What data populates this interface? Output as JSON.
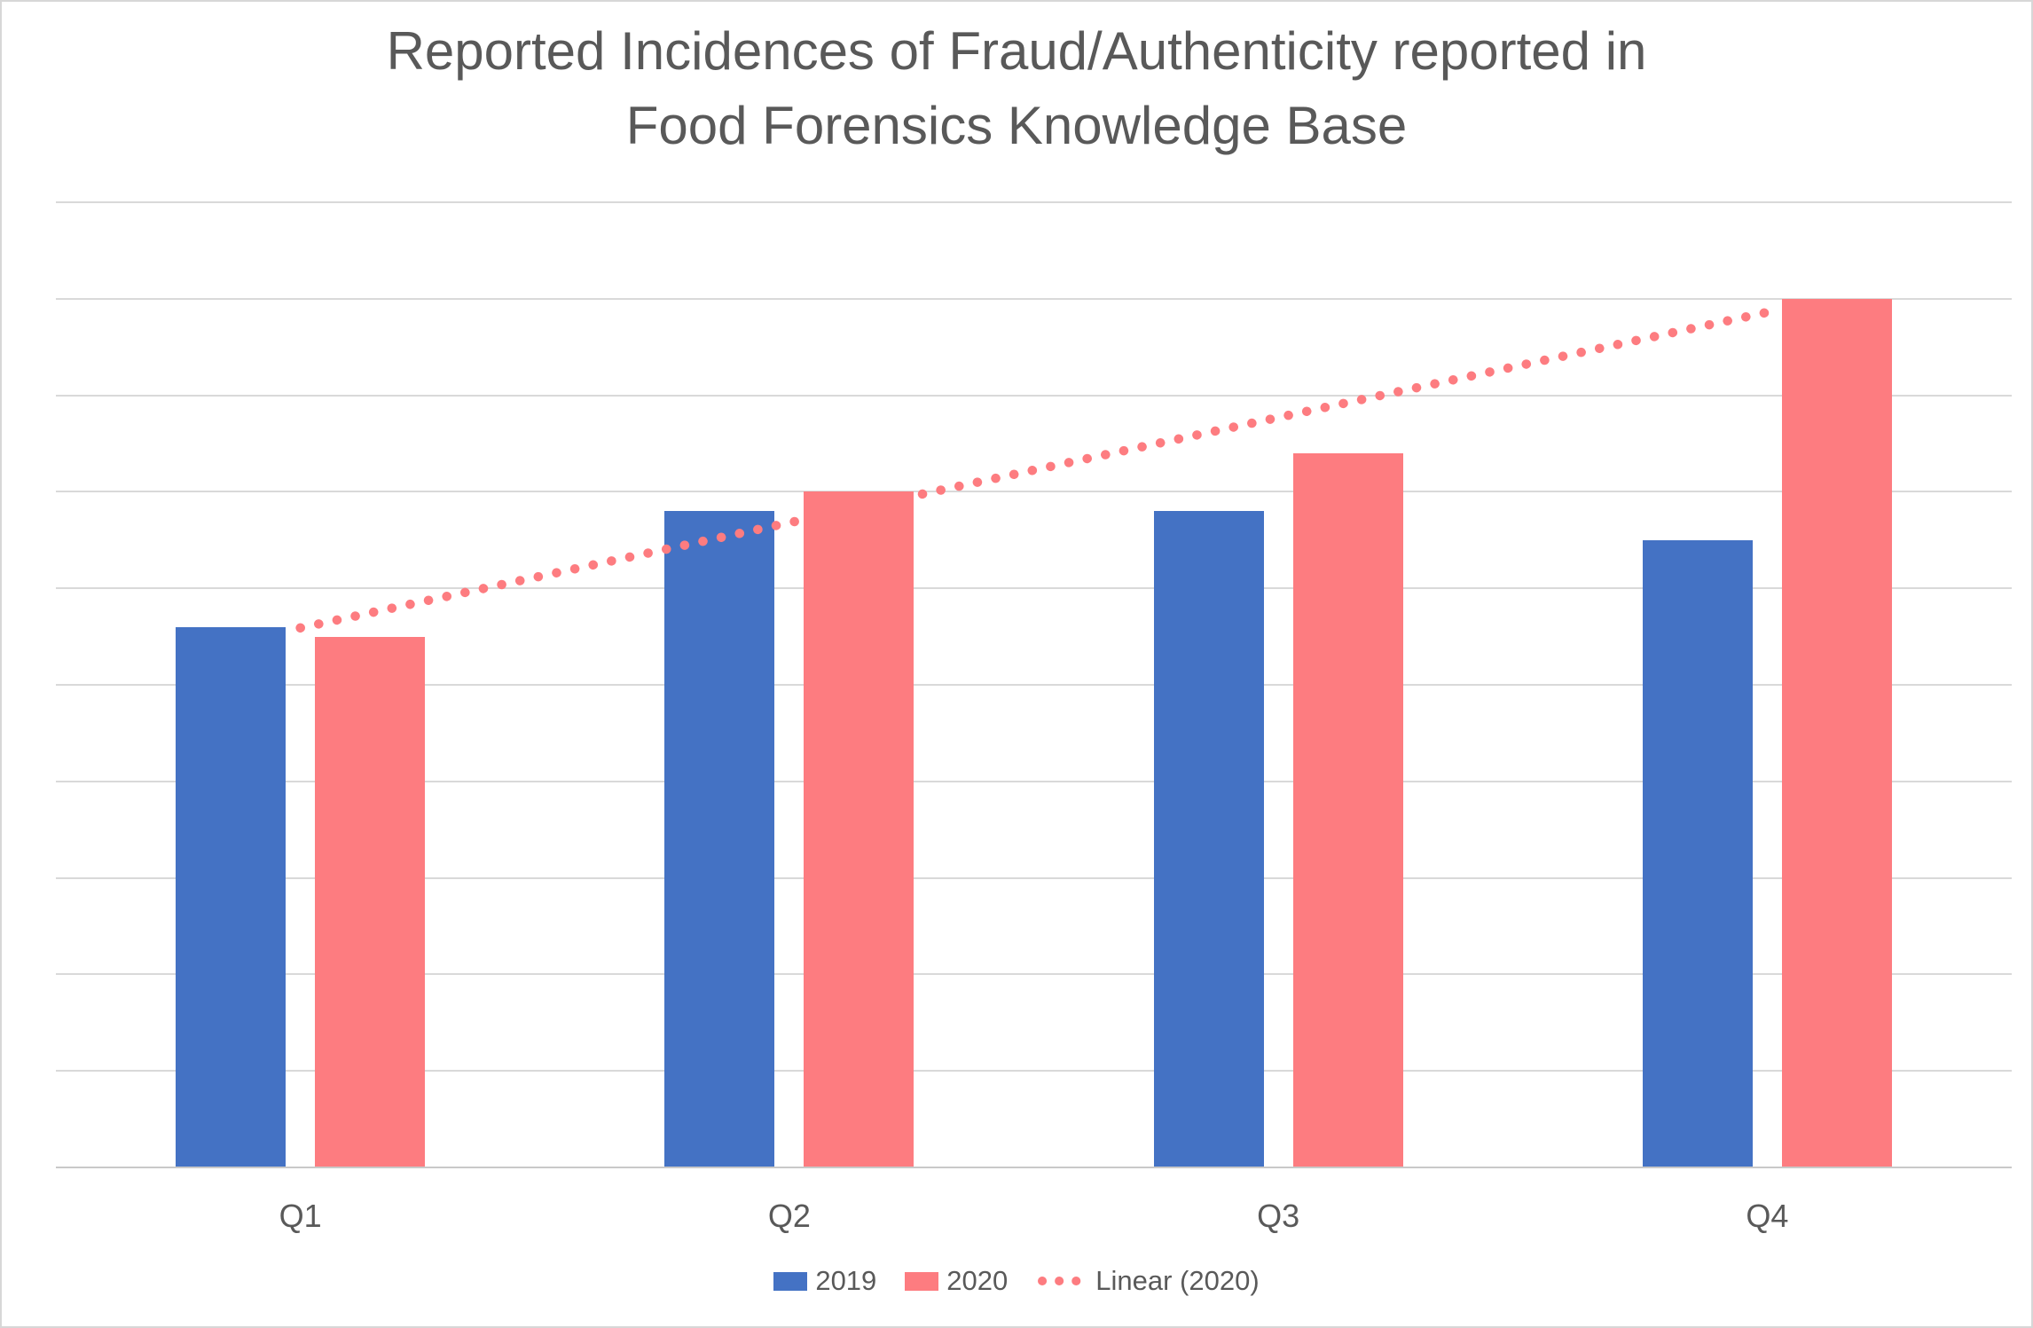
{
  "chart_data": {
    "type": "bar",
    "title": "Reported Incidences of Fraud/Authenticity reported in Food Forensics Knowledge Base",
    "title_lines": [
      "Reported Incidences of Fraud/Authenticity reported in",
      "Food Forensics Knowledge Base"
    ],
    "categories": [
      "Q1",
      "Q2",
      "Q3",
      "Q4"
    ],
    "series": [
      {
        "name": "2019",
        "color": "#4472C4",
        "values": [
          56,
          68,
          68,
          65
        ]
      },
      {
        "name": "2020",
        "color": "#FD7C80",
        "values": [
          55,
          70,
          74,
          90
        ]
      }
    ],
    "trendline": {
      "label": "Linear (2020)",
      "on_series": "2020",
      "fit": "linear",
      "style": "dotted",
      "color": "#FD7C80"
    },
    "xlabel": "",
    "ylabel": "",
    "ylim": [
      0,
      100
    ],
    "gridline_step": 10,
    "y_axis_labels_visible": false,
    "gridlines": "horizontal",
    "legend_position": "bottom",
    "colors": {
      "background": "#FFFFFF",
      "frame_border": "#D7D7D7",
      "gridline": "#D9D9D9",
      "axis_line": "#C9C9C9",
      "text": "#595959"
    }
  }
}
